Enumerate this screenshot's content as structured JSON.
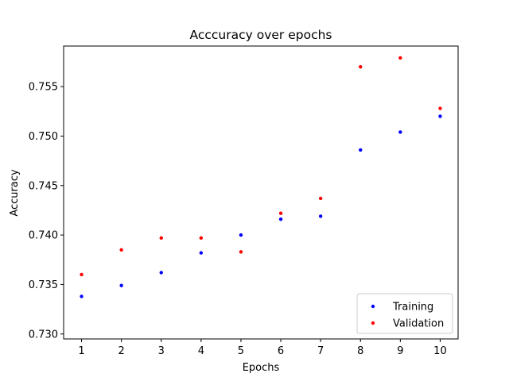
{
  "chart_data": {
    "type": "scatter",
    "title": "Acccuracy over epochs",
    "xlabel": "Epochs",
    "ylabel": "Accuracy",
    "x": [
      1,
      2,
      3,
      4,
      5,
      6,
      7,
      8,
      9,
      10
    ],
    "xticks": [
      "1",
      "2",
      "3",
      "4",
      "5",
      "6",
      "7",
      "8",
      "9",
      "10"
    ],
    "yticks": [
      "0.730",
      "0.735",
      "0.740",
      "0.745",
      "0.750",
      "0.755"
    ],
    "ytick_values": [
      0.73,
      0.735,
      0.74,
      0.745,
      0.75,
      0.755
    ],
    "xlim": [
      0.55,
      10.45
    ],
    "ylim": [
      0.7295,
      0.7591
    ],
    "grid": false,
    "legend_position": "lower-right",
    "series": [
      {
        "name": "Training",
        "color": "#0000ff",
        "values": [
          0.7338,
          0.7349,
          0.7362,
          0.7382,
          0.74,
          0.7416,
          0.7419,
          0.7486,
          0.7504,
          0.752
        ]
      },
      {
        "name": "Validation",
        "color": "#ff0000",
        "values": [
          0.736,
          0.7385,
          0.7397,
          0.7397,
          0.7383,
          0.7422,
          0.7437,
          0.757,
          0.7579,
          0.7528
        ]
      }
    ]
  }
}
